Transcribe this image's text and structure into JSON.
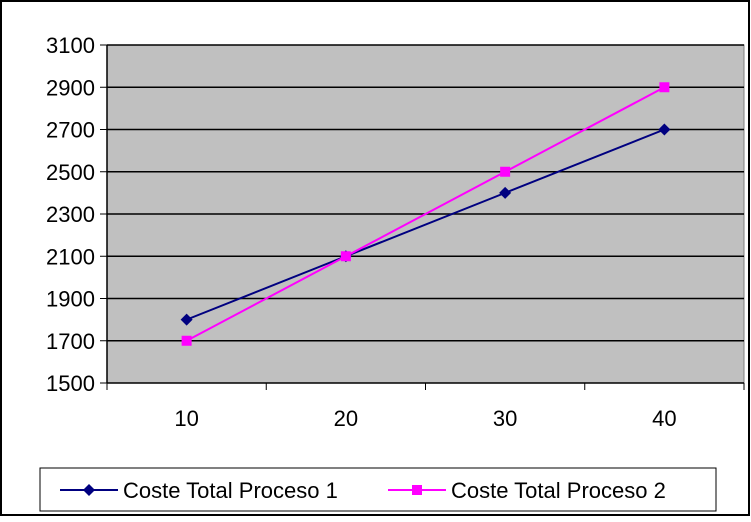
{
  "chart_data": {
    "type": "line",
    "categories": [
      "10",
      "20",
      "30",
      "40"
    ],
    "series": [
      {
        "name": "Coste Total Proceso 1",
        "values": [
          1800,
          2100,
          2400,
          2700
        ],
        "color": "#000080",
        "marker": "diamond"
      },
      {
        "name": "Coste Total Proceso 2",
        "values": [
          1700,
          2100,
          2500,
          2900
        ],
        "color": "#FF00FF",
        "marker": "square"
      }
    ],
    "y_ticks": [
      "1500",
      "1700",
      "1900",
      "2100",
      "2300",
      "2500",
      "2700",
      "2900",
      "3100"
    ],
    "ylim": [
      1500,
      3100
    ],
    "grid": "horizontal",
    "legend_position": "bottom",
    "plot_background": "#C0C0C0",
    "title": "",
    "xlabel": "",
    "ylabel": ""
  }
}
